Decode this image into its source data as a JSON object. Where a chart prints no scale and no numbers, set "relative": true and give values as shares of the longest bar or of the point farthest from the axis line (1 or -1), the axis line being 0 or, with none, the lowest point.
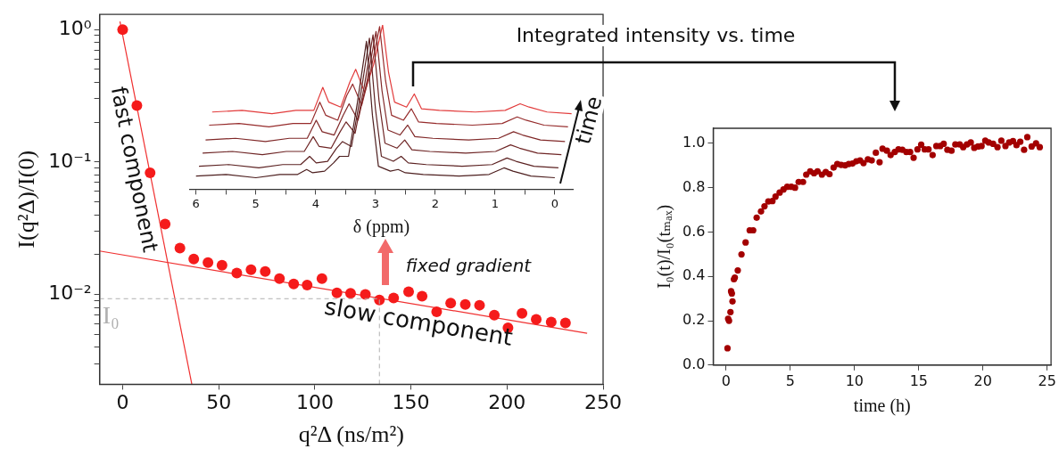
{
  "chart_data": [
    {
      "type": "scatter",
      "xlabel": "q²Δ (ns/m²)",
      "ylabel": "I(q²Δ)/I(0)",
      "log": "y",
      "marker": "circle",
      "legend": false,
      "xlim": [
        -12,
        250
      ],
      "ylim": [
        0.0021,
        1.3
      ],
      "xticks": [
        0,
        50,
        100,
        150,
        200,
        250
      ],
      "yticks": [
        {
          "value": 1,
          "label": "10⁰"
        },
        {
          "value": 0.1,
          "label": "10⁻¹"
        },
        {
          "value": 0.01,
          "label": "10⁻²"
        },
        {
          "value": 0.003,
          "label": null
        },
        {
          "value": 0.004,
          "label": null
        },
        {
          "value": 0.005,
          "label": null
        },
        {
          "value": 0.006,
          "label": null
        },
        {
          "value": 0.007,
          "label": null
        },
        {
          "value": 0.008,
          "label": null
        },
        {
          "value": 0.009,
          "label": null
        },
        {
          "value": 0.02,
          "label": null
        },
        {
          "value": 0.03,
          "label": null
        },
        {
          "value": 0.04,
          "label": null
        },
        {
          "value": 0.05,
          "label": null
        },
        {
          "value": 0.06,
          "label": null
        },
        {
          "value": 0.07,
          "label": null
        },
        {
          "value": 0.08,
          "label": null
        },
        {
          "value": 0.09,
          "label": null
        },
        {
          "value": 0.2,
          "label": null
        },
        {
          "value": 0.3,
          "label": null
        },
        {
          "value": 0.4,
          "label": null
        },
        {
          "value": 0.5,
          "label": null
        },
        {
          "value": 0.6,
          "label": null
        },
        {
          "value": 0.7,
          "label": null
        },
        {
          "value": 0.8,
          "label": null
        },
        {
          "value": 0.9,
          "label": null
        }
      ],
      "ref_lines": [
        {
          "axis": "y",
          "value": 0.0093,
          "label": "I₀",
          "color": "#b0b0b0",
          "line_style": "dashed"
        },
        {
          "axis": "x",
          "value": 133.6,
          "color": "#b0b0b0",
          "line_style": "dashed"
        }
      ],
      "annotations": [
        "fixed gradient"
      ],
      "series": [
        {
          "color": "#f51b1b",
          "x": [
            0,
            7.4,
            14.3,
            22.1,
            29.8,
            37,
            44.4,
            51.7,
            59.4,
            66.8,
            74.2,
            81.6,
            89,
            96,
            103.7,
            111.5,
            118.6,
            126.3,
            133.6,
            141,
            148.8,
            155.8,
            163.4,
            170.7,
            178.3,
            185.7,
            193.4,
            200.5,
            207.8,
            215.2,
            223,
            230.4
          ],
          "values": [
            1.0,
            0.267,
            0.083,
            0.034,
            0.0224,
            0.0185,
            0.0174,
            0.0166,
            0.0145,
            0.0154,
            0.0149,
            0.0132,
            0.012,
            0.0118,
            0.0132,
            0.0103,
            0.0102,
            0.01,
            0.0091,
            0.0094,
            0.0105,
            0.0097,
            0.0074,
            0.0086,
            0.0084,
            0.0083,
            0.007,
            0.0056,
            0.0072,
            0.0065,
            0.0062,
            0.0061
          ]
        },
        {
          "type": "line",
          "marker": "none",
          "name": "fast component",
          "color": "#f03030",
          "x": [
            -1.4,
            36
          ],
          "values": [
            1.15,
            0.0021
          ]
        },
        {
          "type": "line",
          "marker": "none",
          "name": "slow component",
          "color": "#f03030",
          "x": [
            -12,
            241.7
          ],
          "values": [
            0.0213,
            0.0051
          ]
        }
      ]
    },
    {
      "type": "line",
      "relative": true,
      "xlabel": "δ (ppm)",
      "xlim": [
        6.1,
        -0.3
      ],
      "xticks": [
        6,
        {
          "value": 5.5,
          "label": null
        },
        5,
        {
          "value": 4.5,
          "label": null
        },
        4,
        {
          "value": 3.5,
          "label": null
        },
        3,
        {
          "value": 2.5,
          "label": null
        },
        2,
        {
          "value": 1.5,
          "label": null
        },
        1,
        {
          "value": 0.5,
          "label": null
        },
        0
      ],
      "tick_labels": "x",
      "legend": false,
      "annotations": [
        "time"
      ],
      "series": [
        {
          "color": "#4d1f1f",
          "x": [
            6.0,
            5.5,
            5.0,
            4.6,
            4.3,
            4.15,
            4.05,
            3.85,
            3.7,
            3.6,
            3.45,
            3.3,
            3.15,
            3.05,
            2.95,
            2.75,
            2.62,
            2.5,
            2.2,
            1.6,
            1.1,
            0.85,
            0.7,
            0.4,
            0.0
          ],
          "values": [
            0.08,
            0.09,
            0.07,
            0.09,
            0.09,
            0.12,
            0.1,
            0.11,
            0.16,
            0.2,
            0.2,
            0.53,
            0.9,
            0.45,
            0.14,
            0.11,
            0.12,
            0.1,
            0.09,
            0.08,
            0.09,
            0.13,
            0.11,
            0.08,
            0.07
          ]
        },
        {
          "color": "#5c2222",
          "x": [
            5.95,
            5.45,
            4.95,
            4.55,
            4.25,
            4.1,
            3.99,
            3.8,
            3.65,
            3.55,
            3.4,
            3.25,
            3.1,
            3.0,
            2.9,
            2.7,
            2.57,
            2.45,
            2.15,
            1.55,
            1.05,
            0.8,
            0.65,
            0.35,
            -0.06
          ],
          "values": [
            0.14,
            0.15,
            0.13,
            0.15,
            0.15,
            0.2,
            0.16,
            0.17,
            0.25,
            0.29,
            0.26,
            0.57,
            0.92,
            0.49,
            0.2,
            0.17,
            0.2,
            0.16,
            0.15,
            0.14,
            0.15,
            0.19,
            0.17,
            0.14,
            0.13
          ]
        },
        {
          "color": "#6e2525",
          "x": [
            5.89,
            5.39,
            4.89,
            4.49,
            4.19,
            4.04,
            3.94,
            3.74,
            3.59,
            3.49,
            3.34,
            3.19,
            3.04,
            2.94,
            2.84,
            2.64,
            2.51,
            2.39,
            2.09,
            1.49,
            0.99,
            0.74,
            0.59,
            0.29,
            -0.11
          ],
          "values": [
            0.22,
            0.23,
            0.21,
            0.23,
            0.23,
            0.32,
            0.26,
            0.25,
            0.35,
            0.41,
            0.34,
            0.62,
            0.94,
            0.54,
            0.28,
            0.25,
            0.3,
            0.24,
            0.23,
            0.22,
            0.23,
            0.27,
            0.25,
            0.22,
            0.21
          ]
        },
        {
          "color": "#802828",
          "x": [
            5.84,
            5.34,
            4.84,
            4.44,
            4.14,
            3.99,
            3.89,
            3.69,
            3.54,
            3.44,
            3.29,
            3.14,
            2.99,
            2.89,
            2.79,
            2.59,
            2.46,
            2.34,
            2.04,
            1.44,
            0.94,
            0.69,
            0.54,
            0.24,
            -0.17
          ],
          "values": [
            0.3,
            0.31,
            0.29,
            0.31,
            0.31,
            0.42,
            0.35,
            0.33,
            0.45,
            0.52,
            0.42,
            0.66,
            0.96,
            0.6,
            0.36,
            0.33,
            0.39,
            0.32,
            0.31,
            0.3,
            0.31,
            0.35,
            0.33,
            0.3,
            0.29
          ]
        },
        {
          "color": "#962c2c",
          "x": [
            5.78,
            5.28,
            4.78,
            4.38,
            4.08,
            3.93,
            3.83,
            3.63,
            3.48,
            3.38,
            3.23,
            3.08,
            2.93,
            2.83,
            2.73,
            2.53,
            2.4,
            2.28,
            1.98,
            1.38,
            0.88,
            0.63,
            0.48,
            0.18,
            -0.22
          ],
          "values": [
            0.39,
            0.4,
            0.38,
            0.4,
            0.4,
            0.53,
            0.45,
            0.42,
            0.57,
            0.64,
            0.51,
            0.72,
            0.99,
            0.66,
            0.45,
            0.42,
            0.49,
            0.41,
            0.4,
            0.39,
            0.4,
            0.44,
            0.42,
            0.39,
            0.38
          ]
        },
        {
          "color": "#e23b3b",
          "x": [
            5.73,
            5.23,
            4.73,
            4.33,
            4.03,
            3.88,
            3.78,
            3.58,
            3.43,
            3.33,
            3.18,
            3.03,
            2.88,
            2.78,
            2.68,
            2.48,
            2.35,
            2.23,
            1.93,
            1.33,
            0.83,
            0.58,
            0.43,
            0.13,
            -0.28
          ],
          "values": [
            0.47,
            0.48,
            0.46,
            0.48,
            0.48,
            0.62,
            0.53,
            0.5,
            0.65,
            0.73,
            0.59,
            0.76,
            1.0,
            0.71,
            0.53,
            0.5,
            0.58,
            0.49,
            0.48,
            0.47,
            0.48,
            0.52,
            0.5,
            0.47,
            0.46
          ]
        }
      ]
    },
    {
      "type": "scatter",
      "xlabel": "time (h)",
      "ylabel": "I₀(t)/I₀(tₘₐₓ)",
      "marker": "circle",
      "legend": false,
      "color": "#a30000",
      "xlim": [
        -1,
        25.3
      ],
      "ylim": [
        0,
        1.068
      ],
      "xticks": [
        0,
        5,
        10,
        15,
        20,
        25
      ],
      "yticks": [
        {
          "value": 0,
          "label": "0.0"
        },
        {
          "value": 0.2,
          "label": "0.2"
        },
        {
          "value": 0.4,
          "label": "0.4"
        },
        {
          "value": 0.6,
          "label": "0.6"
        },
        {
          "value": 0.8,
          "label": "0.8"
        },
        {
          "value": 1,
          "label": "1.0"
        }
      ],
      "annotations": [
        "Integrated intensity vs. time"
      ],
      "x": [
        0.11,
        0.16,
        0.23,
        0.34,
        0.39,
        0.45,
        0.5,
        0.61,
        0.68,
        0.91,
        1.2,
        1.52,
        1.84,
        2.11,
        2.38,
        2.72,
        2.99,
        3.29,
        3.61,
        3.85,
        4.17,
        4.47,
        4.76,
        5.08,
        5.37,
        5.65,
        5.99,
        6.24,
        6.55,
        6.85,
        7.12,
        7.46,
        7.76,
        8.05,
        8.37,
        8.66,
        8.96,
        9.27,
        9.55,
        9.84,
        10.14,
        10.43,
        10.7,
        11.04,
        11.34,
        11.66,
        11.95,
        12.18,
        12.52,
        12.81,
        13.13,
        13.42,
        13.72,
        14.04,
        14.33,
        14.6,
        14.9,
        15.19,
        15.46,
        15.76,
        16.08,
        16.37,
        16.67,
        16.94,
        17.23,
        17.55,
        17.85,
        18.19,
        18.46,
        18.75,
        19.05,
        19.32,
        19.61,
        19.89,
        20.18,
        20.45,
        20.79,
        21.13,
        21.43,
        21.75,
        22.04,
        22.34,
        22.61,
        22.9,
        23.2,
        23.45,
        23.79,
        24.13,
        24.42
      ],
      "values": [
        0.076,
        0.209,
        0.2,
        0.239,
        0.333,
        0.323,
        0.287,
        0.387,
        0.395,
        0.427,
        0.499,
        0.553,
        0.608,
        0.608,
        0.665,
        0.693,
        0.716,
        0.738,
        0.74,
        0.76,
        0.778,
        0.792,
        0.804,
        0.804,
        0.8,
        0.826,
        0.826,
        0.859,
        0.874,
        0.865,
        0.874,
        0.859,
        0.871,
        0.861,
        0.891,
        0.907,
        0.903,
        0.901,
        0.907,
        0.909,
        0.919,
        0.923,
        0.911,
        0.928,
        0.923,
        0.958,
        0.915,
        0.976,
        0.967,
        0.947,
        0.961,
        0.973,
        0.971,
        0.961,
        0.961,
        0.935,
        0.973,
        0.994,
        0.973,
        0.973,
        0.947,
        0.988,
        0.988,
        0.998,
        0.971,
        0.967,
        0.995,
        0.995,
        0.983,
        0.995,
        1.004,
        0.98,
        0.986,
        0.988,
        1.012,
        1.004,
        0.998,
        0.983,
        1.012,
        0.988,
        1.004,
        1.01,
        0.992,
        1.007,
        0.971,
        1.028,
        0.986,
        1.0,
        0.983
      ]
    }
  ]
}
